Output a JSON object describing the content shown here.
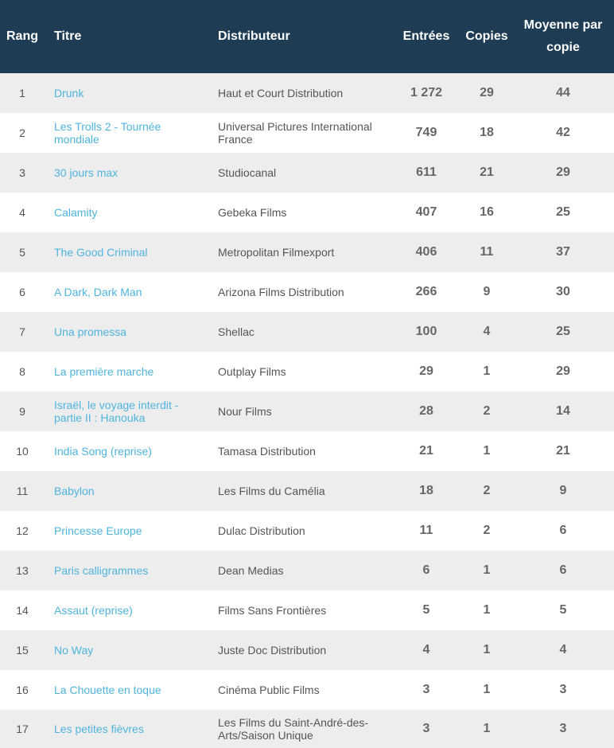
{
  "headers": {
    "rang": "Rang",
    "titre": "Titre",
    "distributeur": "Distributeur",
    "entrees": "Entrées",
    "copies": "Copies",
    "moyenne": "Moyenne par copie"
  },
  "colors": {
    "header_bg": "#1e3c53",
    "link": "#4fb4dd",
    "row_alt": "#ededed"
  },
  "rows": [
    {
      "rang": "1",
      "titre": "Drunk",
      "distributeur": "Haut et Court Distribution",
      "entrees": "1 272",
      "copies": "29",
      "moyenne": "44"
    },
    {
      "rang": "2",
      "titre": "Les Trolls 2 - Tournée mondiale",
      "distributeur": "Universal Pictures International France",
      "entrees": "749",
      "copies": "18",
      "moyenne": "42"
    },
    {
      "rang": "3",
      "titre": "30 jours max",
      "distributeur": "Studiocanal",
      "entrees": "611",
      "copies": "21",
      "moyenne": "29"
    },
    {
      "rang": "4",
      "titre": "Calamity",
      "distributeur": "Gebeka Films",
      "entrees": "407",
      "copies": "16",
      "moyenne": "25"
    },
    {
      "rang": "5",
      "titre": "The Good Criminal",
      "distributeur": "Metropolitan Filmexport",
      "entrees": "406",
      "copies": "11",
      "moyenne": "37"
    },
    {
      "rang": "6",
      "titre": "A Dark, Dark Man",
      "distributeur": "Arizona Films Distribution",
      "entrees": "266",
      "copies": "9",
      "moyenne": "30"
    },
    {
      "rang": "7",
      "titre": "Una promessa",
      "distributeur": "Shellac",
      "entrees": "100",
      "copies": "4",
      "moyenne": "25"
    },
    {
      "rang": "8",
      "titre": "La première marche",
      "distributeur": "Outplay Films",
      "entrees": "29",
      "copies": "1",
      "moyenne": "29"
    },
    {
      "rang": "9",
      "titre": "Israël, le voyage interdit - partie II : Hanouka",
      "distributeur": "Nour Films",
      "entrees": "28",
      "copies": "2",
      "moyenne": "14"
    },
    {
      "rang": "10",
      "titre": "India Song (reprise)",
      "distributeur": "Tamasa Distribution",
      "entrees": "21",
      "copies": "1",
      "moyenne": "21"
    },
    {
      "rang": "11",
      "titre": "Babylon",
      "distributeur": "Les Films du Camélia",
      "entrees": "18",
      "copies": "2",
      "moyenne": "9"
    },
    {
      "rang": "12",
      "titre": "Princesse Europe",
      "distributeur": "Dulac Distribution",
      "entrees": "11",
      "copies": "2",
      "moyenne": "6"
    },
    {
      "rang": "13",
      "titre": "Paris calligrammes",
      "distributeur": "Dean Medias",
      "entrees": "6",
      "copies": "1",
      "moyenne": "6"
    },
    {
      "rang": "14",
      "titre": "Assaut (reprise)",
      "distributeur": "Films Sans Frontières",
      "entrees": "5",
      "copies": "1",
      "moyenne": "5"
    },
    {
      "rang": "15",
      "titre": "No Way",
      "distributeur": "Juste Doc Distribution",
      "entrees": "4",
      "copies": "1",
      "moyenne": "4"
    },
    {
      "rang": "16",
      "titre": "La Chouette en toque",
      "distributeur": "Cinéma Public Films",
      "entrees": "3",
      "copies": "1",
      "moyenne": "3"
    },
    {
      "rang": "17",
      "titre": "Les petites fièvres",
      "distributeur": "Les Films du Saint-André-des-Arts/Saison Unique",
      "entrees": "3",
      "copies": "1",
      "moyenne": "3"
    }
  ]
}
